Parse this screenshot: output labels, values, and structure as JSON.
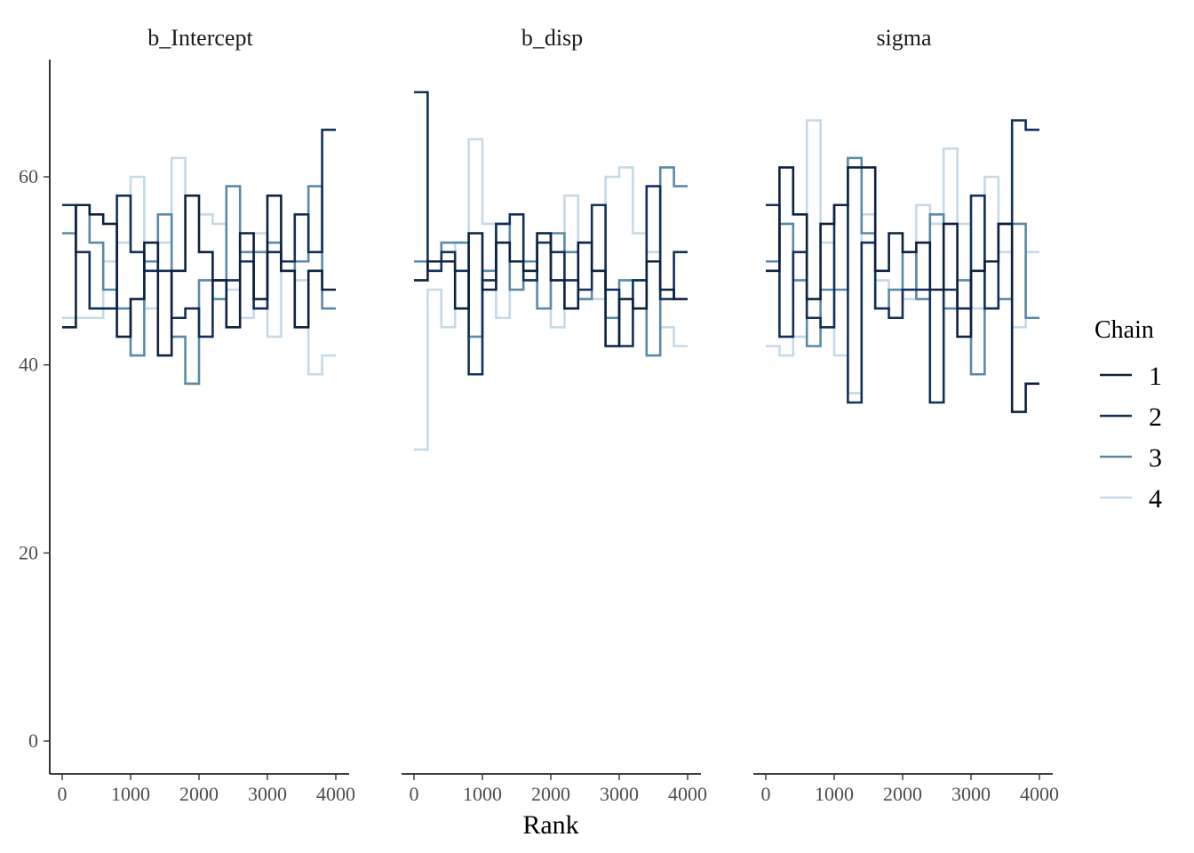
{
  "chart_data": {
    "type": "line",
    "step": true,
    "xlabel": "Rank",
    "ylabel": "",
    "xlim": [
      0,
      4000
    ],
    "ylim": [
      0,
      70
    ],
    "x_ticks": [
      0,
      1000,
      2000,
      3000,
      4000
    ],
    "y_ticks": [
      0,
      20,
      40,
      60
    ],
    "bin_edges": [
      0,
      200,
      400,
      600,
      800,
      1000,
      1200,
      1400,
      1600,
      1800,
      2000,
      2200,
      2400,
      2600,
      2800,
      3000,
      3200,
      3400,
      3600,
      3800,
      4000
    ],
    "legend": {
      "title": "Chain",
      "position": "right"
    },
    "series_colors": [
      "#0d2240",
      "#12305a",
      "#5a8aa5",
      "#c5dae6"
    ],
    "panels": [
      {
        "title": "b_Intercept",
        "series": [
          {
            "name": "1",
            "values": [
              44,
              57,
              56,
              55,
              43,
              47,
              53,
              41,
              50,
              58,
              52,
              49,
              44,
              54,
              47,
              58,
              50,
              44,
              50,
              48
            ]
          },
          {
            "name": "2",
            "values": [
              57,
              52,
              46,
              46,
              58,
              52,
              50,
              50,
              45,
              46,
              43,
              49,
              49,
              51,
              46,
              52,
              51,
              56,
              52,
              65
            ]
          },
          {
            "name": "3",
            "values": [
              54,
              57,
              53,
              48,
              46,
              41,
              51,
              56,
              43,
              38,
              49,
              47,
              59,
              52,
              52,
              53,
              50,
              51,
              59,
              46
            ]
          },
          {
            "name": "4",
            "values": [
              45,
              45,
              45,
              51,
              53,
              60,
              46,
              53,
              62,
              58,
              56,
              55,
              48,
              45,
              54,
              43,
              51,
              49,
              39,
              41
            ]
          }
        ]
      },
      {
        "title": "b_disp",
        "series": [
          {
            "name": "1",
            "values": [
              49,
              51,
              51,
              46,
              54,
              48,
              53,
              51,
              50,
              54,
              49,
              46,
              53,
              50,
              42,
              47,
              46,
              51,
              48,
              47
            ]
          },
          {
            "name": "2",
            "values": [
              69,
              50,
              52,
              50,
              39,
              49,
              55,
              56,
              49,
              53,
              52,
              49,
              48,
              57,
              48,
              42,
              49,
              59,
              47,
              52
            ]
          },
          {
            "name": "3",
            "values": [
              51,
              51,
              53,
              53,
              43,
              50,
              55,
              48,
              51,
              46,
              54,
              52,
              47,
              50,
              45,
              49,
              49,
              41,
              61,
              59
            ]
          },
          {
            "name": "4",
            "values": [
              31,
              48,
              44,
              53,
              64,
              55,
              45,
              48,
              50,
              54,
              44,
              58,
              47,
              47,
              60,
              61,
              54,
              52,
              44,
              42
            ]
          }
        ]
      },
      {
        "title": "sigma",
        "series": [
          {
            "name": "1",
            "values": [
              50,
              61,
              56,
              47,
              55,
              57,
              61,
              61,
              50,
              54,
              52,
              53,
              48,
              55,
              43,
              50,
              51,
              55,
              35,
              38
            ]
          },
          {
            "name": "2",
            "values": [
              57,
              43,
              52,
              45,
              44,
              57,
              36,
              53,
              46,
              45,
              48,
              48,
              36,
              48,
              46,
              58,
              46,
              55,
              66,
              65
            ]
          },
          {
            "name": "3",
            "values": [
              51,
              55,
              49,
              42,
              48,
              48,
              62,
              54,
              46,
              48,
              52,
              47,
              56,
              46,
              49,
              39,
              46,
              47,
              55,
              45
            ]
          },
          {
            "name": "4",
            "values": [
              42,
              41,
              43,
              66,
              53,
              41,
              37,
              56,
              49,
              48,
              47,
              57,
              55,
              63,
              55,
              46,
              60,
              52,
              44,
              52
            ]
          }
        ]
      }
    ]
  }
}
